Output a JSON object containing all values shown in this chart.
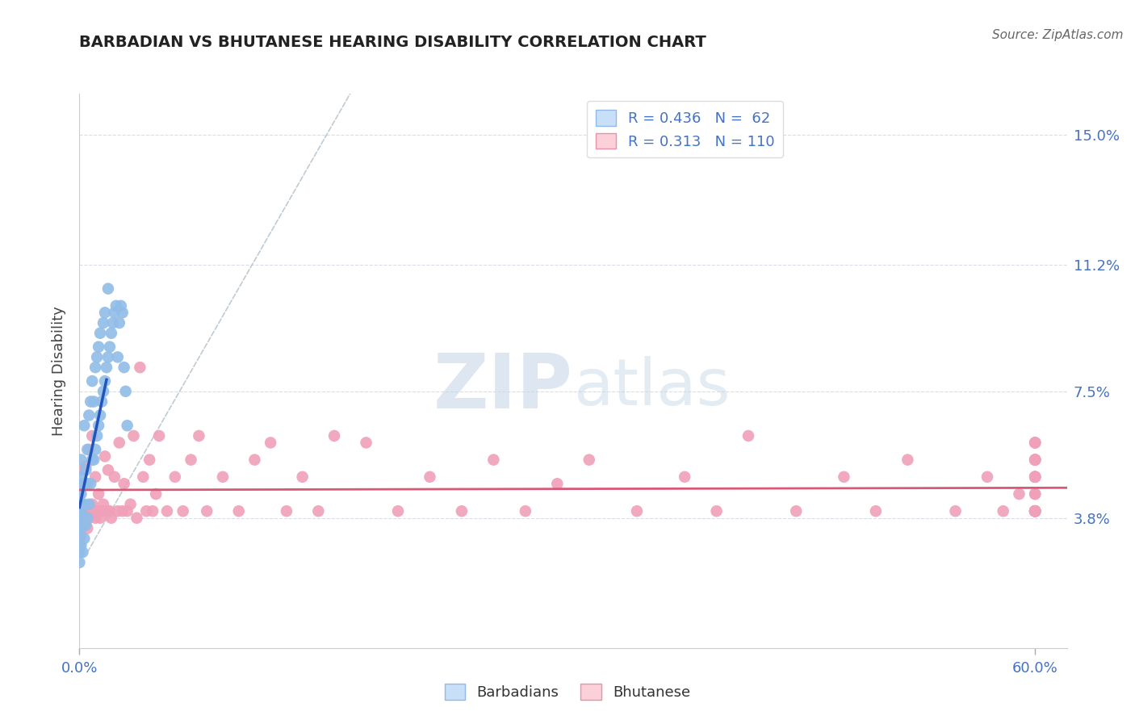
{
  "title": "BARBADIAN VS BHUTANESE HEARING DISABILITY CORRELATION CHART",
  "source": "Source: ZipAtlas.com",
  "ylabel": "Hearing Disability",
  "yticks": [
    0.038,
    0.075,
    0.112,
    0.15
  ],
  "ytick_labels": [
    "3.8%",
    "7.5%",
    "11.2%",
    "15.0%"
  ],
  "xtick_labels": [
    "0.0%",
    "60.0%"
  ],
  "xlim": [
    0.0,
    0.62
  ],
  "ylim": [
    0.0,
    0.162
  ],
  "barbadian_R": 0.436,
  "barbadian_N": 62,
  "bhutanese_R": 0.313,
  "bhutanese_N": 110,
  "barbadian_dot_color": "#90bde8",
  "bhutanese_dot_color": "#f0a0b8",
  "barbadian_trend_color": "#2255bb",
  "bhutanese_trend_color": "#d85878",
  "barbadian_legend_facecolor": "#c8dff8",
  "bhutanese_legend_facecolor": "#fcd0d8",
  "watermark_color": "#c8d8e8",
  "background_color": "#ffffff",
  "grid_color": "#d8dde8",
  "right_tick_color": "#4472c4",
  "bottom_tick_color": "#4472c4",
  "barbadian_x": [
    0.0,
    0.0,
    0.0,
    0.0,
    0.0,
    0.0,
    0.0,
    0.0,
    0.0,
    0.001,
    0.001,
    0.001,
    0.001,
    0.001,
    0.001,
    0.002,
    0.002,
    0.002,
    0.003,
    0.003,
    0.003,
    0.004,
    0.004,
    0.005,
    0.005,
    0.005,
    0.006,
    0.006,
    0.007,
    0.007,
    0.008,
    0.008,
    0.009,
    0.009,
    0.01,
    0.01,
    0.011,
    0.011,
    0.012,
    0.012,
    0.013,
    0.013,
    0.014,
    0.015,
    0.015,
    0.016,
    0.016,
    0.017,
    0.018,
    0.018,
    0.019,
    0.02,
    0.021,
    0.022,
    0.023,
    0.024,
    0.025,
    0.026,
    0.027,
    0.028,
    0.029,
    0.03
  ],
  "barbadian_y": [
    0.025,
    0.028,
    0.03,
    0.032,
    0.035,
    0.037,
    0.04,
    0.042,
    0.045,
    0.03,
    0.035,
    0.04,
    0.045,
    0.05,
    0.055,
    0.028,
    0.038,
    0.048,
    0.032,
    0.042,
    0.065,
    0.036,
    0.052,
    0.038,
    0.048,
    0.058,
    0.042,
    0.068,
    0.048,
    0.072,
    0.055,
    0.078,
    0.055,
    0.072,
    0.058,
    0.082,
    0.062,
    0.085,
    0.065,
    0.088,
    0.068,
    0.092,
    0.072,
    0.075,
    0.095,
    0.078,
    0.098,
    0.082,
    0.085,
    0.105,
    0.088,
    0.092,
    0.095,
    0.098,
    0.1,
    0.085,
    0.095,
    0.1,
    0.098,
    0.082,
    0.075,
    0.065
  ],
  "bhutanese_x": [
    0.0,
    0.0,
    0.0,
    0.001,
    0.001,
    0.002,
    0.002,
    0.003,
    0.003,
    0.004,
    0.004,
    0.005,
    0.006,
    0.006,
    0.007,
    0.008,
    0.008,
    0.009,
    0.01,
    0.01,
    0.011,
    0.012,
    0.013,
    0.014,
    0.015,
    0.016,
    0.017,
    0.018,
    0.019,
    0.02,
    0.022,
    0.024,
    0.025,
    0.027,
    0.028,
    0.03,
    0.032,
    0.034,
    0.036,
    0.038,
    0.04,
    0.042,
    0.044,
    0.046,
    0.048,
    0.05,
    0.055,
    0.06,
    0.065,
    0.07,
    0.075,
    0.08,
    0.09,
    0.1,
    0.11,
    0.12,
    0.13,
    0.14,
    0.15,
    0.16,
    0.18,
    0.2,
    0.22,
    0.24,
    0.26,
    0.28,
    0.3,
    0.32,
    0.35,
    0.38,
    0.4,
    0.42,
    0.45,
    0.48,
    0.5,
    0.52,
    0.55,
    0.57,
    0.58,
    0.59,
    0.6,
    0.6,
    0.6,
    0.6,
    0.6,
    0.6,
    0.6,
    0.6,
    0.6,
    0.6,
    0.6,
    0.6,
    0.6,
    0.6,
    0.6,
    0.6,
    0.6,
    0.6,
    0.6,
    0.6,
    0.6,
    0.6,
    0.6,
    0.6,
    0.6,
    0.6,
    0.6,
    0.6,
    0.6,
    0.6
  ],
  "bhutanese_y": [
    0.035,
    0.04,
    0.045,
    0.033,
    0.042,
    0.036,
    0.052,
    0.038,
    0.048,
    0.04,
    0.053,
    0.035,
    0.038,
    0.058,
    0.04,
    0.042,
    0.062,
    0.04,
    0.038,
    0.05,
    0.04,
    0.045,
    0.038,
    0.04,
    0.042,
    0.056,
    0.04,
    0.052,
    0.04,
    0.038,
    0.05,
    0.04,
    0.06,
    0.04,
    0.048,
    0.04,
    0.042,
    0.062,
    0.038,
    0.082,
    0.05,
    0.04,
    0.055,
    0.04,
    0.045,
    0.062,
    0.04,
    0.05,
    0.04,
    0.055,
    0.062,
    0.04,
    0.05,
    0.04,
    0.055,
    0.06,
    0.04,
    0.05,
    0.04,
    0.062,
    0.06,
    0.04,
    0.05,
    0.04,
    0.055,
    0.04,
    0.048,
    0.055,
    0.04,
    0.05,
    0.04,
    0.062,
    0.04,
    0.05,
    0.04,
    0.055,
    0.04,
    0.05,
    0.04,
    0.045,
    0.04,
    0.055,
    0.05,
    0.04,
    0.06,
    0.04,
    0.05,
    0.04,
    0.055,
    0.04,
    0.05,
    0.04,
    0.045,
    0.04,
    0.055,
    0.04,
    0.06,
    0.04,
    0.05,
    0.04,
    0.055,
    0.04,
    0.05,
    0.04,
    0.045,
    0.04,
    0.055,
    0.04,
    0.06,
    0.04
  ]
}
